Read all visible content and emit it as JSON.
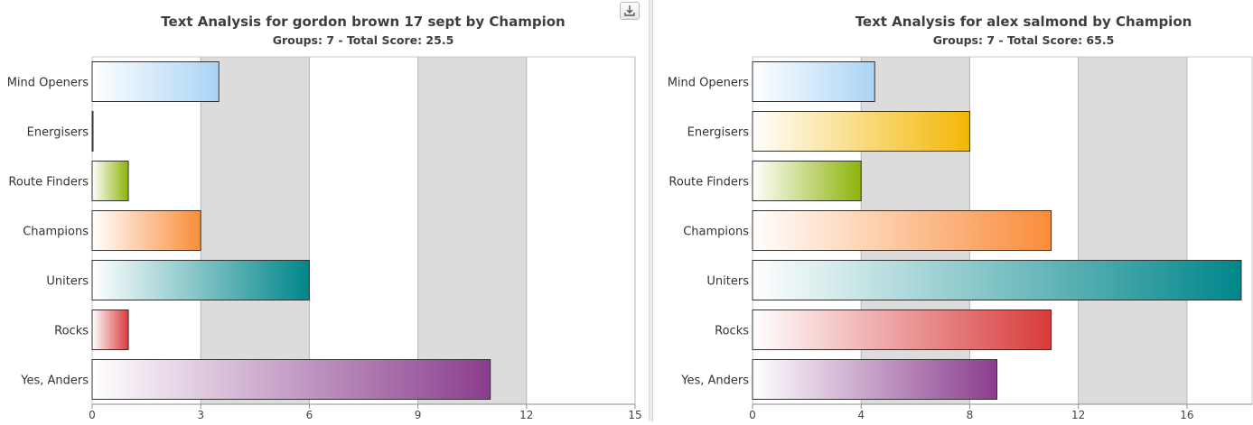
{
  "chart_data": [
    {
      "type": "bar",
      "orientation": "horizontal",
      "title": "Text Analysis for gordon brown 17 sept by Champion",
      "subtitle": "Groups: 7 - Total Score: 25.5",
      "categories": [
        "Mind Openers",
        "Energisers",
        "Route Finders",
        "Champions",
        "Uniters",
        "Rocks",
        "Yes, Anders"
      ],
      "values": [
        3.5,
        0,
        1,
        3,
        6,
        1,
        11
      ],
      "colors": [
        "#a9d4f5",
        "#f2b705",
        "#8db40a",
        "#fa8c3a",
        "#00868a",
        "#d83a3a",
        "#8a3d8d"
      ],
      "xlim": [
        0,
        15
      ],
      "xticks": [
        0,
        3,
        6,
        9,
        12,
        15
      ],
      "grid": true,
      "xlabel": "",
      "ylabel": ""
    },
    {
      "type": "bar",
      "orientation": "horizontal",
      "title": "Text Analysis for alex salmond by Champion",
      "subtitle": "Groups: 7 - Total Score: 65.5",
      "categories": [
        "Mind Openers",
        "Energisers",
        "Route Finders",
        "Champions",
        "Uniters",
        "Rocks",
        "Yes, Anders"
      ],
      "values": [
        4.5,
        8,
        4,
        11,
        18,
        11,
        9
      ],
      "colors": [
        "#a9d4f5",
        "#f2b705",
        "#8db40a",
        "#fa8c3a",
        "#00868a",
        "#d83a3a",
        "#8a3d8d"
      ],
      "xlim": [
        0,
        18.4
      ],
      "xticks": [
        0,
        4,
        8,
        12,
        16
      ],
      "grid": true,
      "xlabel": "",
      "ylabel": ""
    }
  ],
  "toolbar": {
    "export_icon": "download-icon"
  }
}
